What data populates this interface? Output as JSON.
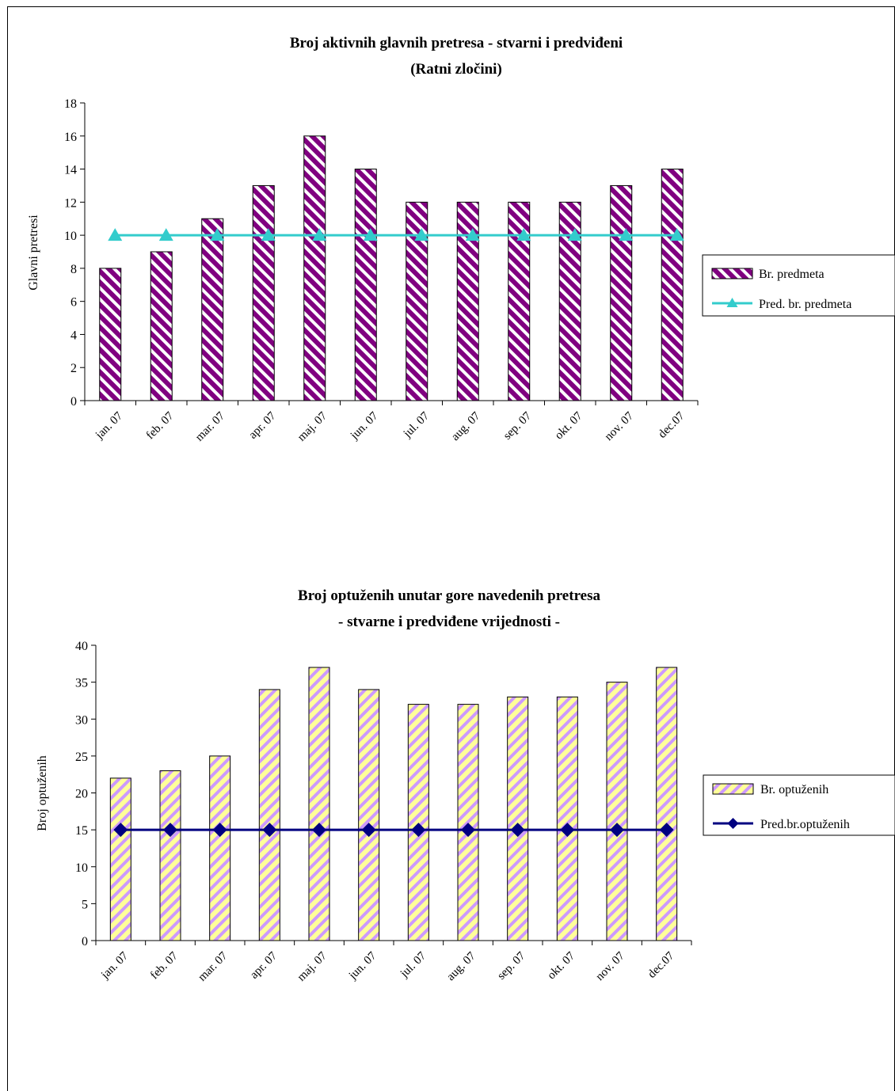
{
  "chart_data": [
    {
      "type": "bar",
      "title": "Broj aktivnih glavnih pretresa - stvarni i predviđeni",
      "subtitle": "(Ratni zločini)",
      "xlabel": "",
      "ylabel": "Glavni pretresi",
      "ylim": [
        0,
        18
      ],
      "yticks": [
        0,
        2,
        4,
        6,
        8,
        10,
        12,
        14,
        16,
        18
      ],
      "categories": [
        "jan. 07",
        "feb. 07",
        "mar. 07",
        "apr. 07",
        "maj. 07",
        "jun. 07",
        "jul. 07",
        "aug. 07",
        "sep. 07",
        "okt. 07",
        "nov. 07",
        "dec.07"
      ],
      "series": [
        {
          "name": "Br. predmeta",
          "kind": "bar",
          "values": [
            8,
            9,
            11,
            13,
            16,
            14,
            12,
            12,
            12,
            12,
            13,
            14
          ],
          "color": "#800080",
          "stripe": "#ffffff"
        },
        {
          "name": "Pred. br. predmeta",
          "kind": "line",
          "marker": "triangle",
          "values": [
            10,
            10,
            10,
            10,
            10,
            10,
            10,
            10,
            10,
            10,
            10,
            10
          ],
          "color": "#33cccc"
        }
      ],
      "legend": "right",
      "grid": false
    },
    {
      "type": "bar",
      "title": "Broj optuženih unutar gore navedenih pretresa",
      "subtitle": "- stvarne i predviđene vrijednosti -",
      "xlabel": "",
      "ylabel": "Broj optuženih",
      "ylim": [
        0,
        40
      ],
      "yticks": [
        0,
        5,
        10,
        15,
        20,
        25,
        30,
        35,
        40
      ],
      "categories": [
        "jan. 07",
        "feb. 07",
        "mar. 07",
        "apr. 07",
        "maj. 07",
        "jun. 07",
        "jul. 07",
        "aug. 07",
        "sep. 07",
        "okt. 07",
        "nov. 07",
        "dec.07"
      ],
      "series": [
        {
          "name": "Br. optuženih",
          "kind": "bar",
          "values": [
            22,
            23,
            25,
            34,
            37,
            34,
            32,
            32,
            33,
            33,
            35,
            37
          ],
          "color": "#ffff99",
          "stripe": "#cc99ff"
        },
        {
          "name": "Pred.br.optuženih",
          "kind": "line",
          "marker": "diamond",
          "values": [
            15,
            15,
            15,
            15,
            15,
            15,
            15,
            15,
            15,
            15,
            15,
            15
          ],
          "color": "#000080"
        }
      ],
      "legend": "right",
      "grid": false
    }
  ]
}
